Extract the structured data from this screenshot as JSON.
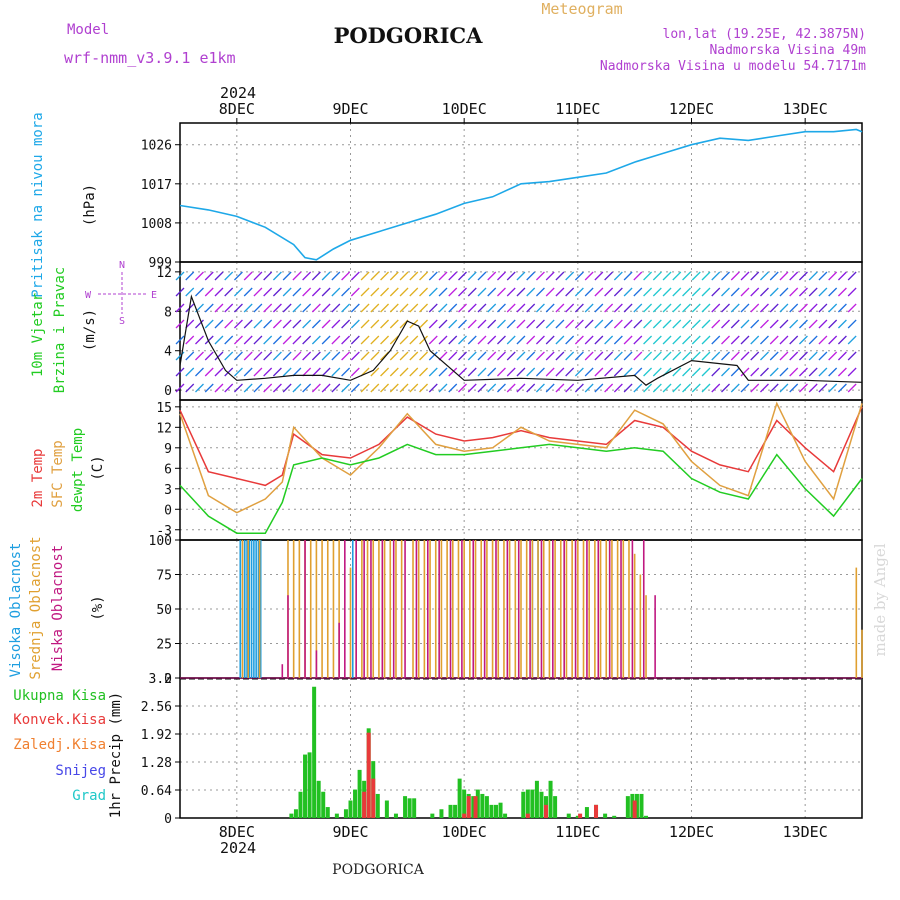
{
  "header": {
    "title": "PODGORICA",
    "model_label": "Model",
    "model_name": "wrf-nmm_v3.9.1 e1km",
    "meteogram": "Meteogram",
    "coords": "lon,lat (19.25E, 42.3875N)",
    "altitude": "Nadmorska Visina 49m",
    "model_altitude": "Nadmorska Visina u modelu 54.7171m",
    "year_top": "2024",
    "year_bottom": "2024",
    "footer": "PODGORICA",
    "watermark": "made by Angel"
  },
  "colors": {
    "pressure": "#1ea8e8",
    "temp2m": "#e83a3a",
    "sfc": "#e0a040",
    "dewpt": "#22cc22",
    "high_cloud": "#1e9ee0",
    "mid_cloud": "#e0a030",
    "low_cloud": "#c01880",
    "precip_total": "#22c022",
    "precip_conv": "#e83a3a",
    "precip_frozen": "#f08030",
    "snow": "#4848e8",
    "graupel": "#20c8c8",
    "purple_text": "#b040d0",
    "orange_text": "#e0b060"
  },
  "days": [
    "8DEC",
    "9DEC",
    "10DEC",
    "11DEC",
    "12DEC",
    "13DEC"
  ],
  "panels": {
    "pressure": {
      "label": "Pritisak na nivou mora",
      "unit": "(hPa)"
    },
    "wind": {
      "label1": "10m Vjetar",
      "label2": "Brzina i Pravac",
      "unit": "(m/s)",
      "compass_n": "N",
      "compass_s": "S",
      "compass_e": "E",
      "compass_w": "W"
    },
    "temp": {
      "label1": "2m Temp",
      "label2": "SFC Temp",
      "label3": "dewpt Temp",
      "unit": "(C)"
    },
    "cloud": {
      "label1": "Visoka Oblacnost",
      "label2": "Srednja Oblacnost",
      "label3": "Niska Oblacnost",
      "unit": "(%)"
    },
    "precip": {
      "unit": "1hr Precip (mm)"
    }
  },
  "legend_precip": [
    "Ukupna Kisa",
    "Konvek.Kisa",
    "Zaledj.Kisa",
    "Snijeg",
    "Grad"
  ],
  "chart_data": [
    {
      "type": "line",
      "panel": "pressure",
      "ylim": [
        999,
        1031
      ],
      "yticks": [
        "999",
        "1008",
        "1017",
        "1026"
      ],
      "x_days": [
        7.5,
        7.75,
        8.0,
        8.25,
        8.5,
        8.6,
        8.7,
        8.85,
        9.0,
        9.25,
        9.5,
        9.75,
        10.0,
        10.25,
        10.5,
        10.75,
        11.0,
        11.25,
        11.5,
        11.75,
        12.0,
        12.25,
        12.5,
        12.75,
        13.0,
        13.25,
        13.45,
        13.5
      ],
      "series": [
        {
          "values": [
            1012,
            1011,
            1009.5,
            1007,
            1003,
            1000,
            999.5,
            1002,
            1004,
            1006,
            1008,
            1010,
            1012.5,
            1014,
            1017,
            1017.5,
            1018.5,
            1019.5,
            1022,
            1024,
            1026,
            1027.5,
            1027,
            1028,
            1029,
            1029,
            1029.5,
            1029
          ]
        }
      ]
    },
    {
      "type": "line",
      "panel": "wind",
      "ylim": [
        -1,
        13
      ],
      "yticks": [
        "0",
        "4",
        "8",
        "12"
      ],
      "x_days": [
        7.5,
        7.6,
        7.75,
        7.9,
        8.0,
        8.25,
        8.5,
        8.75,
        9.0,
        9.2,
        9.35,
        9.5,
        9.6,
        9.7,
        10.0,
        10.5,
        11.0,
        11.5,
        11.6,
        11.7,
        12.0,
        12.4,
        12.5,
        13.0,
        13.5
      ],
      "series": [
        {
          "values": [
            2.5,
            9.5,
            5,
            2,
            1,
            1.2,
            1.5,
            1.5,
            1,
            2,
            4,
            7,
            6.5,
            4,
            1,
            1.2,
            1,
            1.5,
            0.5,
            1.2,
            3,
            2.5,
            1,
            1,
            0.8
          ]
        }
      ]
    },
    {
      "type": "line",
      "panel": "temp",
      "ylim": [
        -4.5,
        16
      ],
      "yticks": [
        "-3",
        "0",
        "3",
        "6",
        "9",
        "12",
        "15"
      ],
      "x_days": [
        7.5,
        7.75,
        8.0,
        8.25,
        8.4,
        8.5,
        8.75,
        9.0,
        9.25,
        9.5,
        9.75,
        10.0,
        10.25,
        10.5,
        10.75,
        11.0,
        11.25,
        11.5,
        11.75,
        12.0,
        12.25,
        12.5,
        12.75,
        13.0,
        13.25,
        13.5
      ],
      "series": [
        {
          "name": "2m Temp",
          "values": [
            14.5,
            5.5,
            4.5,
            3.5,
            5,
            11,
            8,
            7.5,
            9.5,
            13.5,
            11,
            10,
            10.5,
            11.5,
            10.5,
            10,
            9.5,
            13,
            12,
            8.5,
            6.5,
            5.5,
            13,
            9,
            5.5,
            15
          ]
        },
        {
          "name": "SFC Temp",
          "values": [
            14,
            2,
            -0.5,
            1.5,
            4,
            12,
            7.5,
            5,
            9,
            14,
            9.5,
            8.5,
            9,
            12,
            10,
            9.5,
            9,
            14.5,
            12.5,
            7,
            3.5,
            2,
            15.5,
            7,
            1.5,
            15.5
          ]
        },
        {
          "name": "dewpt Temp",
          "values": [
            3.5,
            -1,
            -3.5,
            -3.5,
            1,
            6.5,
            7.5,
            6.5,
            7.5,
            9.5,
            8,
            8,
            8.5,
            9,
            9.5,
            9,
            8.5,
            9,
            8.5,
            4.5,
            2.5,
            1.5,
            8,
            3,
            -1,
            4.5
          ]
        }
      ]
    },
    {
      "type": "bar",
      "panel": "cloud",
      "ylim": [
        0,
        100
      ],
      "yticks": [
        "0",
        "25",
        "50",
        "75",
        "100"
      ],
      "series": [
        {
          "name": "Visoka Oblacnost",
          "x_days": [
            8.03,
            8.05,
            8.07,
            8.09,
            8.11,
            8.13,
            8.15,
            8.17,
            8.19,
            8.21,
            9.02,
            10.6,
            10.65
          ],
          "values": [
            100,
            100,
            100,
            100,
            100,
            100,
            100,
            100,
            100,
            100,
            100,
            100,
            100
          ]
        },
        {
          "name": "Srednja Oblacnost",
          "x_days": [
            8.05,
            8.1,
            8.2,
            8.45,
            8.5,
            8.55,
            8.6,
            8.65,
            8.7,
            8.75,
            8.8,
            8.85,
            8.9,
            9.0,
            9.05,
            9.1,
            9.15,
            9.2,
            9.25,
            9.3,
            9.35,
            9.4,
            9.45,
            9.55,
            9.6,
            9.65,
            9.7,
            9.75,
            9.8,
            9.85,
            9.9,
            9.95,
            10.0,
            10.05,
            10.1,
            10.15,
            10.2,
            10.25,
            10.3,
            10.35,
            10.4,
            10.45,
            10.5,
            10.55,
            10.6,
            10.65,
            10.7,
            10.75,
            10.8,
            10.85,
            10.9,
            10.95,
            11.0,
            11.05,
            11.1,
            11.15,
            11.2,
            11.25,
            11.3,
            11.35,
            11.4,
            11.45,
            11.5,
            11.55,
            11.6,
            13.45,
            13.5
          ],
          "values": [
            100,
            100,
            100,
            100,
            100,
            100,
            100,
            100,
            100,
            100,
            100,
            100,
            100,
            80,
            100,
            100,
            100,
            100,
            100,
            100,
            100,
            100,
            100,
            100,
            100,
            100,
            100,
            100,
            100,
            100,
            100,
            100,
            100,
            100,
            100,
            100,
            100,
            100,
            100,
            100,
            100,
            100,
            100,
            100,
            100,
            100,
            100,
            100,
            100,
            100,
            100,
            100,
            100,
            100,
            100,
            100,
            100,
            100,
            100,
            100,
            100,
            100,
            90,
            75,
            60,
            80,
            35
          ]
        },
        {
          "name": "Niska Oblacnost",
          "x_days": [
            8.4,
            8.45,
            8.6,
            8.7,
            8.9,
            8.95,
            9.05,
            9.12,
            9.18,
            9.28,
            9.38,
            9.48,
            9.58,
            9.68,
            9.78,
            9.88,
            9.98,
            10.08,
            10.18,
            10.28,
            10.38,
            10.48,
            10.58,
            10.68,
            10.78,
            10.88,
            10.98,
            11.08,
            11.18,
            11.28,
            11.38,
            11.48,
            11.58,
            11.68
          ],
          "values": [
            10,
            60,
            100,
            20,
            40,
            100,
            100,
            100,
            100,
            100,
            100,
            100,
            100,
            100,
            100,
            100,
            100,
            100,
            100,
            100,
            100,
            100,
            100,
            100,
            100,
            100,
            100,
            100,
            100,
            100,
            100,
            100,
            100,
            60
          ]
        }
      ]
    },
    {
      "type": "bar",
      "panel": "precip",
      "ylim": [
        0,
        3.2
      ],
      "yticks": [
        "0",
        "0.64",
        "1.28",
        "1.92",
        "2.56",
        "3.2"
      ],
      "series": [
        {
          "name": "Ukupna Kisa",
          "x_days": [
            8.48,
            8.52,
            8.56,
            8.6,
            8.64,
            8.68,
            8.72,
            8.76,
            8.8,
            8.88,
            8.96,
            9.0,
            9.04,
            9.08,
            9.12,
            9.16,
            9.2,
            9.24,
            9.32,
            9.4,
            9.48,
            9.52,
            9.56,
            9.72,
            9.8,
            9.88,
            9.92,
            9.96,
            10.0,
            10.04,
            10.08,
            10.12,
            10.16,
            10.2,
            10.24,
            10.28,
            10.32,
            10.36,
            10.52,
            10.56,
            10.6,
            10.64,
            10.68,
            10.72,
            10.76,
            10.8,
            10.92,
            11.0,
            11.08,
            11.16,
            11.24,
            11.32,
            11.44,
            11.48,
            11.52,
            11.56,
            11.6
          ],
          "values": [
            0.1,
            0.2,
            0.6,
            1.45,
            1.5,
            3.0,
            0.85,
            0.6,
            0.25,
            0.1,
            0.2,
            0.4,
            0.65,
            1.1,
            0.85,
            2.05,
            1.3,
            0.55,
            0.4,
            0.1,
            0.5,
            0.45,
            0.45,
            0.1,
            0.2,
            0.3,
            0.3,
            0.9,
            0.65,
            0.55,
            0.5,
            0.65,
            0.55,
            0.5,
            0.3,
            0.3,
            0.35,
            0.1,
            0.6,
            0.65,
            0.65,
            0.85,
            0.6,
            0.5,
            0.85,
            0.5,
            0.1,
            0.05,
            0.25,
            0.3,
            0.1,
            0.05,
            0.5,
            0.55,
            0.55,
            0.55,
            0.05
          ]
        },
        {
          "name": "Konvek.Kisa",
          "x_days": [
            9.12,
            9.16,
            9.2,
            10.0,
            10.04,
            10.1,
            10.56,
            10.72,
            11.02,
            11.16,
            11.5
          ],
          "values": [
            0.6,
            1.95,
            0.9,
            0.1,
            0.5,
            0.5,
            0.1,
            0.3,
            0.1,
            0.3,
            0.4
          ]
        },
        {
          "name": "Zaledj.Kisa",
          "x_days": [],
          "values": []
        },
        {
          "name": "Snijeg",
          "x_days": [],
          "values": []
        },
        {
          "name": "Grad",
          "x_days": [],
          "values": []
        }
      ]
    }
  ]
}
